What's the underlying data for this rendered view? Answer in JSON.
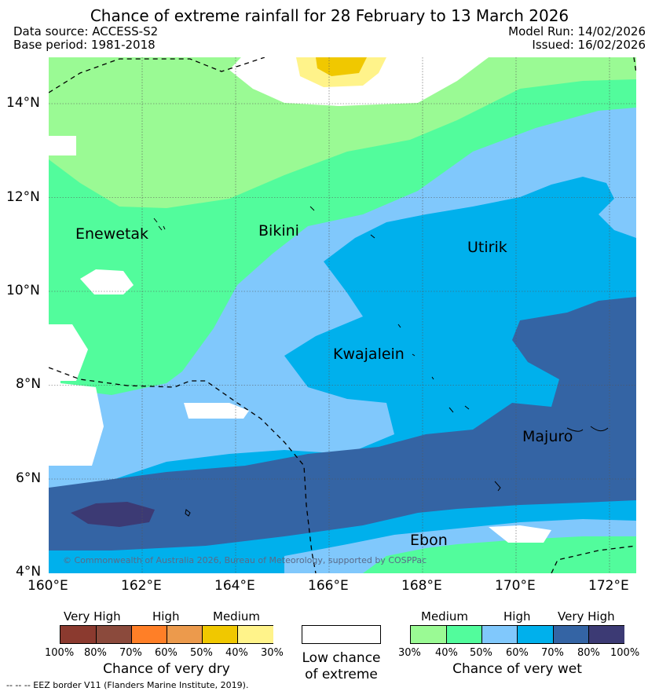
{
  "title": "Chance of extreme rainfall for 28 February to 13 March 2026",
  "header": {
    "data_source": "Data source: ACCESS-S2",
    "base_period": "Base period: 1981-2018",
    "model_run": "Model Run: 14/02/2026",
    "issued": "Issued: 16/02/2026"
  },
  "axes": {
    "lat_labels": [
      "14°N",
      "12°N",
      "10°N",
      "8°N",
      "6°N",
      "4°N"
    ],
    "lon_labels": [
      "160°E",
      "162°E",
      "164°E",
      "166°E",
      "168°E",
      "170°E",
      "172°E"
    ]
  },
  "places": [
    "Enewetak",
    "Bikini",
    "Utirik",
    "Kwajalein",
    "Majuro",
    "Ebon"
  ],
  "copyright": "© Commonwealth of Australia 2026, Bureau of Meteorology, supported by COSPPac",
  "legend": {
    "dry": {
      "headings": [
        "Very High",
        "High",
        "Medium"
      ],
      "ticks": [
        "100%",
        "80%",
        "70%",
        "60%",
        "50%",
        "40%",
        "30%"
      ],
      "colors": [
        "#8b3a2f",
        "#8b4a3c",
        "#ff7f27",
        "#ec9a4c",
        "#f0c800",
        "#fff38a"
      ],
      "caption": "Chance of very dry"
    },
    "low": {
      "line1": "Low chance",
      "line2": "of extreme"
    },
    "wet": {
      "headings": [
        "Medium",
        "High",
        "Very High"
      ],
      "ticks": [
        "30%",
        "40%",
        "50%",
        "60%",
        "70%",
        "80%",
        "100%"
      ],
      "colors": [
        "#9afa94",
        "#52fc9c",
        "#80c8fc",
        "#00b0ec",
        "#3464a4",
        "#3c3a74"
      ],
      "caption": "Chance of very wet"
    }
  },
  "footnote": "--  --  -- EEZ border V11 (Flanders Marine Institute, 2019)."
}
